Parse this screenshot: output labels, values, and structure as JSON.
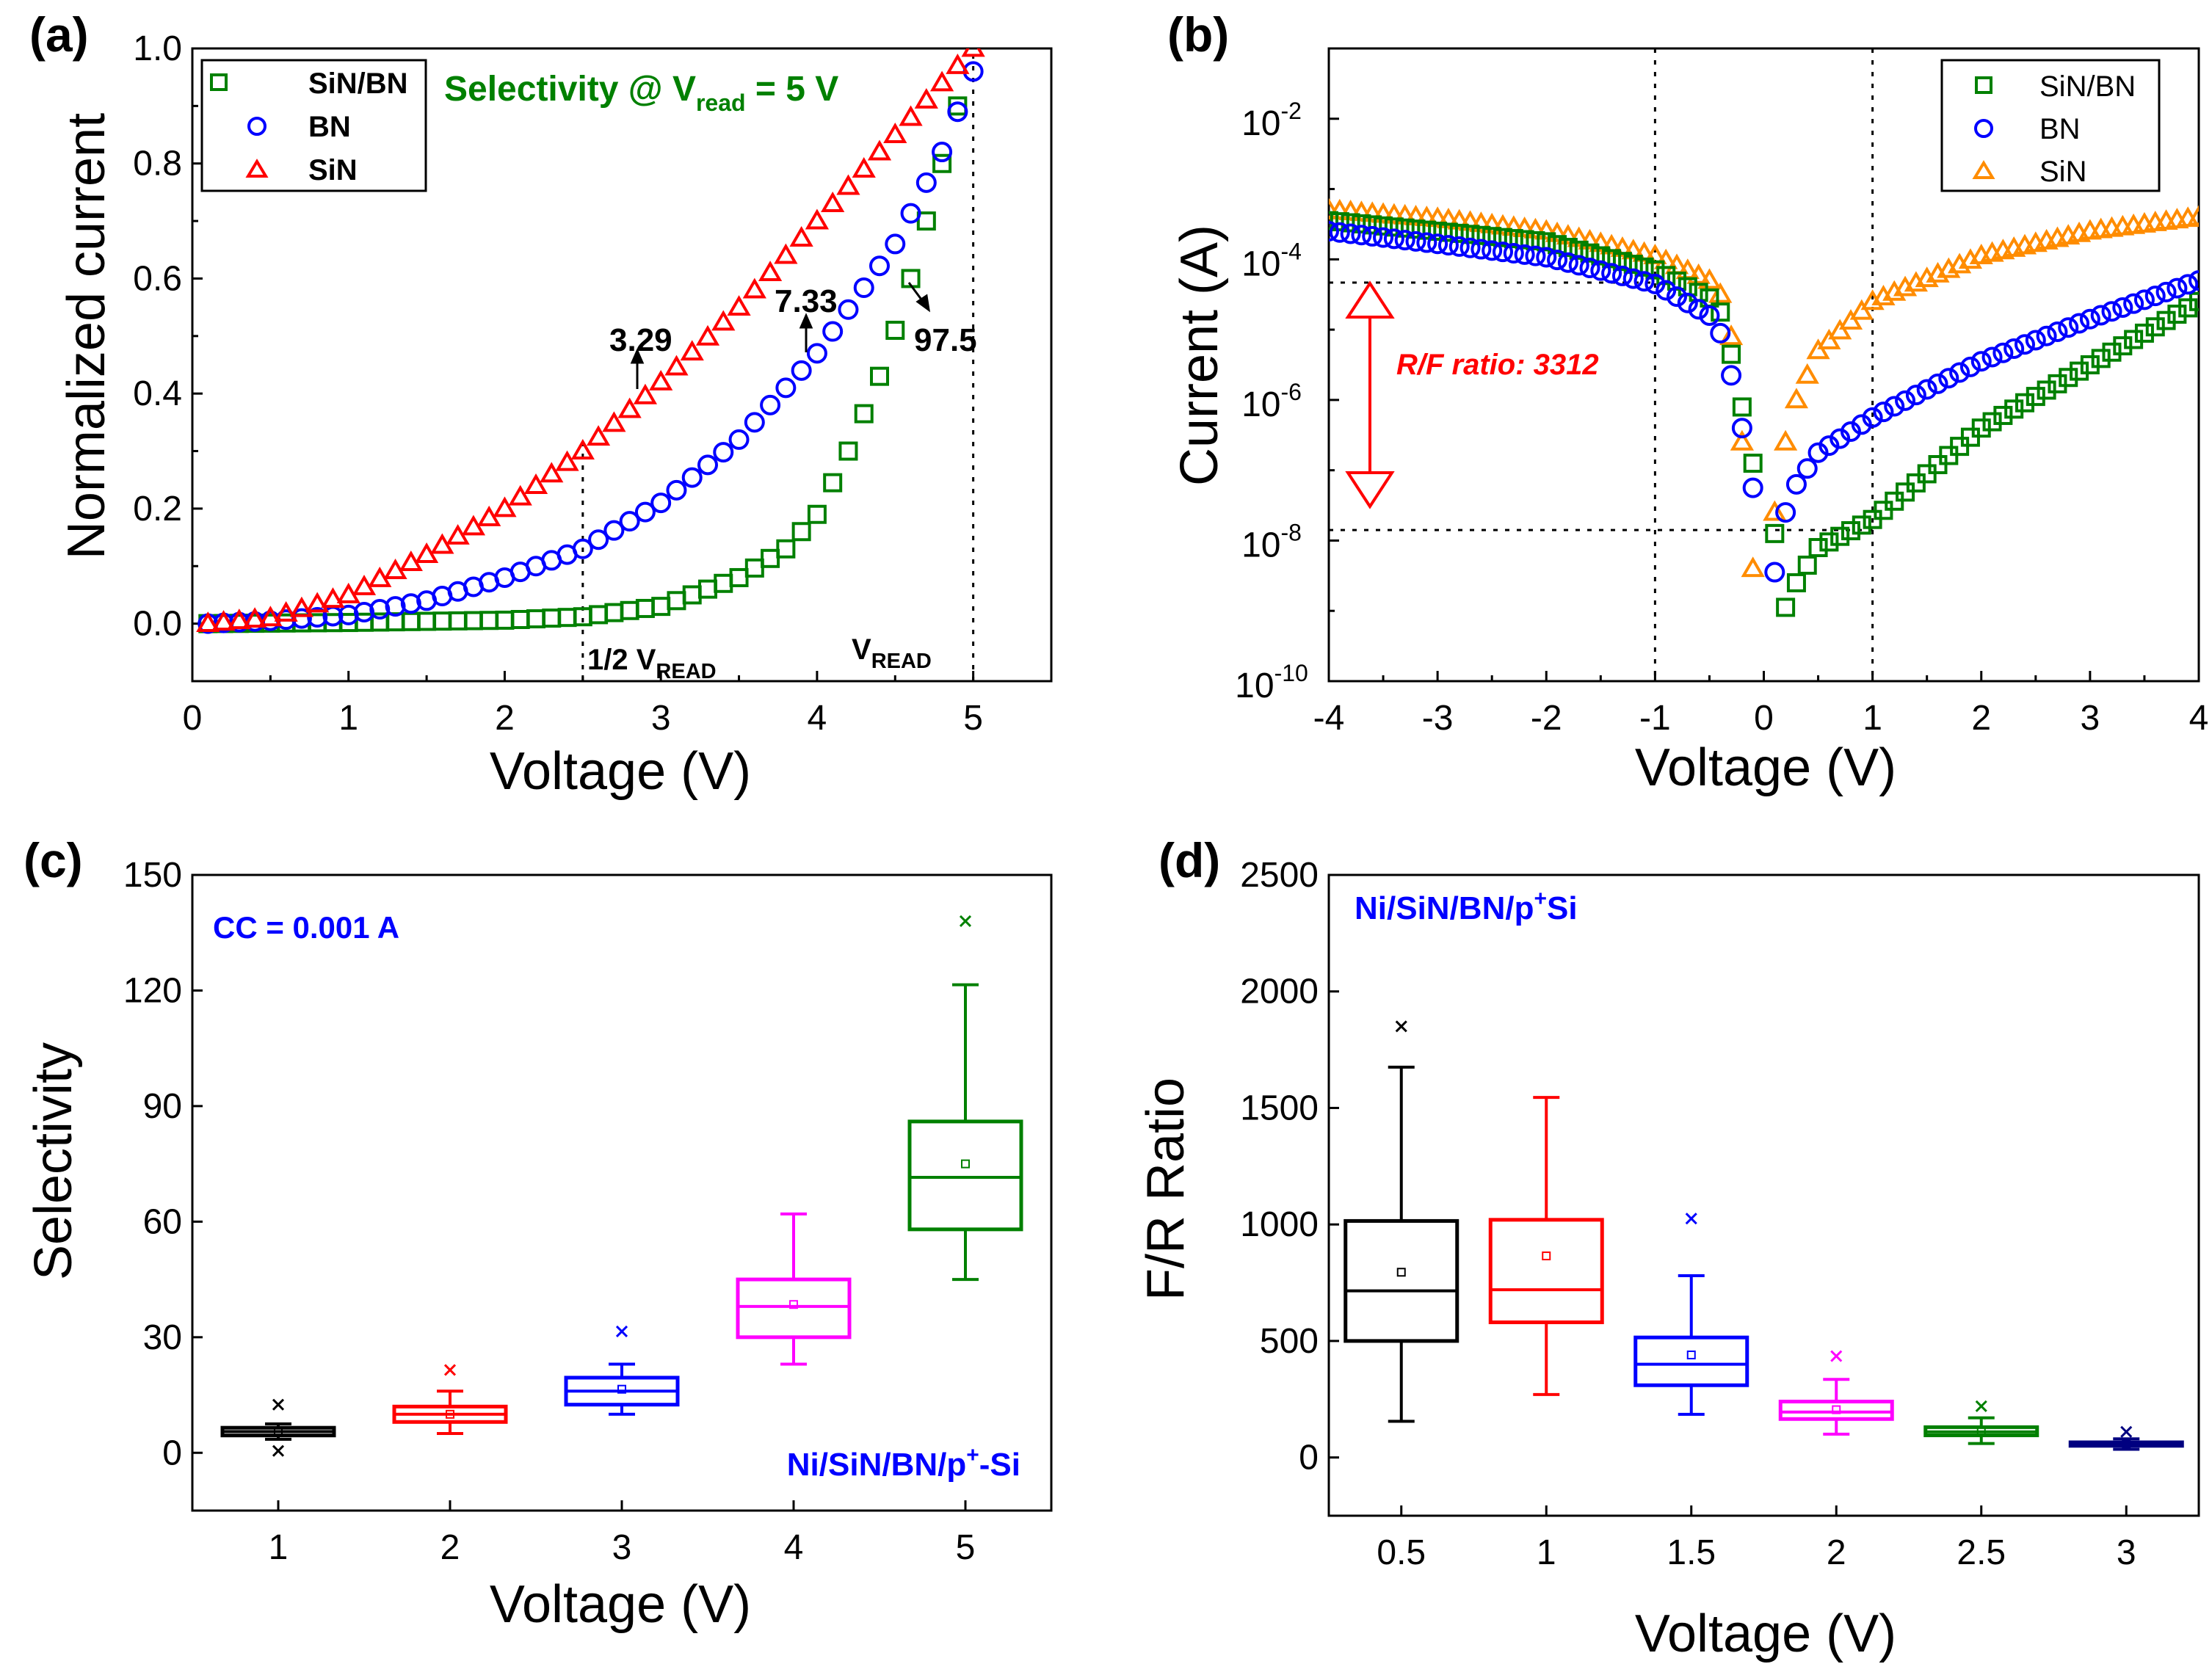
{
  "colors": {
    "green": "#008000",
    "blue": "#0000ff",
    "red": "#ff0000",
    "orange": "#ff8c00",
    "magenta": "#ff00ff",
    "navy": "#000080",
    "black": "#000000"
  },
  "chart_data": [
    {
      "id": "a",
      "panel_label": "(a)",
      "type": "scatter",
      "title": "",
      "xlabel": "Voltage (V)",
      "ylabel": "Normalized current",
      "xlim": [
        0,
        5.5
      ],
      "ylim": [
        -0.1,
        1.0
      ],
      "xticks": [
        0,
        1,
        2,
        3,
        4,
        5
      ],
      "xtick_labels": [
        "0",
        "1",
        "2",
        "3",
        "4",
        "5"
      ],
      "yticks": [
        0.0,
        0.2,
        0.4,
        0.6,
        0.8,
        1.0
      ],
      "ytick_labels": [
        "0.0",
        "0.2",
        "0.4",
        "0.6",
        "0.8",
        "1.0"
      ],
      "legend": {
        "position": "top-left",
        "entries": [
          {
            "label": "SiN/BN",
            "marker": "square",
            "color": "#008000"
          },
          {
            "label": "BN",
            "marker": "circle",
            "color": "#0000ff"
          },
          {
            "label": "SiN",
            "marker": "triangle",
            "color": "#ff0000"
          }
        ]
      },
      "curves": [
        {
          "name": "SiN/BN",
          "marker": "square",
          "color": "#008000",
          "x_start": 0.1,
          "x_end": 4.9,
          "step": 0.1,
          "knots": [
            [
              0.1,
              0.0
            ],
            [
              1.0,
              0.002
            ],
            [
              2.0,
              0.006
            ],
            [
              2.5,
              0.012
            ],
            [
              3.0,
              0.03
            ],
            [
              3.5,
              0.08
            ],
            [
              3.8,
              0.13
            ],
            [
              4.0,
              0.19
            ],
            [
              4.2,
              0.3
            ],
            [
              4.4,
              0.43
            ],
            [
              4.5,
              0.51
            ],
            [
              4.6,
              0.6
            ],
            [
              4.7,
              0.7
            ],
            [
              4.8,
              0.8
            ],
            [
              4.9,
              0.9
            ]
          ]
        },
        {
          "name": "BN",
          "marker": "circle",
          "color": "#0000ff",
          "x_start": 0.1,
          "x_end": 5.0,
          "step": 0.1,
          "knots": [
            [
              0.1,
              0.0
            ],
            [
              0.5,
              0.005
            ],
            [
              1.0,
              0.015
            ],
            [
              1.5,
              0.04
            ],
            [
              2.0,
              0.08
            ],
            [
              2.5,
              0.13
            ],
            [
              3.0,
              0.21
            ],
            [
              3.5,
              0.32
            ],
            [
              4.0,
              0.47
            ],
            [
              4.5,
              0.66
            ],
            [
              4.8,
              0.82
            ],
            [
              4.9,
              0.89
            ],
            [
              5.0,
              0.96
            ]
          ]
        },
        {
          "name": "SiN",
          "marker": "triangle",
          "color": "#ff0000",
          "x_start": 0.1,
          "x_end": 5.0,
          "step": 0.1,
          "knots": [
            [
              0.1,
              0.0
            ],
            [
              0.5,
              0.01
            ],
            [
              1.0,
              0.05
            ],
            [
              1.5,
              0.12
            ],
            [
              2.0,
              0.2
            ],
            [
              2.5,
              0.3
            ],
            [
              3.0,
              0.42
            ],
            [
              3.5,
              0.55
            ],
            [
              4.0,
              0.7
            ],
            [
              4.5,
              0.85
            ],
            [
              5.0,
              1.0
            ]
          ]
        }
      ],
      "vlines": [
        2.5,
        5.0
      ],
      "annotations": {
        "selectivity_title": "Selectivity @ V",
        "selectivity_sub": "read",
        "selectivity_rest": " = 5 V",
        "half_vread": "1/2 V",
        "vread": "V",
        "read_sub": "READ",
        "sel_2_5": "3.29",
        "sel_4": "7.33",
        "sel_5": "97.5"
      }
    },
    {
      "id": "b",
      "panel_label": "(b)",
      "type": "scatter",
      "title": "",
      "xlabel": "Voltage (V)",
      "ylabel": "Current (A)",
      "yscale": "log",
      "xlim": [
        -4,
        4
      ],
      "ylim_log10": [
        -10,
        -1
      ],
      "xticks": [
        -4,
        -3,
        -2,
        -1,
        0,
        1,
        2,
        3,
        4
      ],
      "xtick_labels": [
        "-4",
        "-3",
        "-2",
        "-1",
        "0",
        "1",
        "2",
        "3",
        "4"
      ],
      "ytick_exponents": [
        -10,
        -8,
        -6,
        -4,
        -2
      ],
      "ytick_base": "10",
      "ytick_exponent_labels": [
        "-10",
        "-8",
        "-6",
        "-4",
        "-2"
      ],
      "legend": {
        "position": "top-right",
        "entries": [
          {
            "label": "SiN/BN",
            "marker": "square",
            "color": "#008000"
          },
          {
            "label": "BN",
            "marker": "circle",
            "color": "#0000ff"
          },
          {
            "label": "SiN",
            "marker": "triangle",
            "color": "#ff8c00"
          }
        ]
      },
      "curves": [
        {
          "name": "SiN",
          "marker": "triangle",
          "color": "#ff8c00",
          "x_start": -4.0,
          "x_end": 4.0,
          "step": 0.1,
          "skip_x": [
            0.0
          ],
          "knots": [
            [
              -4.0,
              -3.3
            ],
            [
              -3.0,
              -3.42
            ],
            [
              -2.0,
              -3.6
            ],
            [
              -1.0,
              -3.95
            ],
            [
              -0.5,
              -4.3
            ],
            [
              -0.4,
              -4.5
            ],
            [
              -0.3,
              -5.1
            ],
            [
              -0.2,
              -6.6
            ],
            [
              -0.1,
              -8.4
            ],
            [
              0.1,
              -7.6
            ],
            [
              0.2,
              -6.6
            ],
            [
              0.3,
              -6.0
            ],
            [
              0.5,
              -5.3
            ],
            [
              1.0,
              -4.6
            ],
            [
              2.0,
              -3.95
            ],
            [
              3.0,
              -3.6
            ],
            [
              4.0,
              -3.4
            ]
          ]
        },
        {
          "name": "SiN/BN",
          "marker": "square",
          "color": "#008000",
          "x_start": -4.0,
          "x_end": 4.0,
          "step": 0.1,
          "skip_x": [
            0.0
          ],
          "knots": [
            [
              -4.0,
              -3.45
            ],
            [
              -3.0,
              -3.6
            ],
            [
              -2.0,
              -3.75
            ],
            [
              -1.0,
              -4.15
            ],
            [
              -0.5,
              -4.55
            ],
            [
              -0.4,
              -4.75
            ],
            [
              -0.3,
              -5.35
            ],
            [
              -0.2,
              -6.1
            ],
            [
              -0.1,
              -6.9
            ],
            [
              0.1,
              -7.9
            ],
            [
              0.2,
              -8.95
            ],
            [
              0.3,
              -8.6
            ],
            [
              0.5,
              -8.1
            ],
            [
              1.0,
              -7.7
            ],
            [
              2.0,
              -6.4
            ],
            [
              3.0,
              -5.5
            ],
            [
              4.0,
              -4.6
            ]
          ]
        },
        {
          "name": "BN",
          "marker": "circle",
          "color": "#0000ff",
          "x_start": -4.0,
          "x_end": 4.0,
          "step": 0.1,
          "skip_x": [
            0.0
          ],
          "knots": [
            [
              -4.0,
              -3.6
            ],
            [
              -3.0,
              -3.78
            ],
            [
              -2.0,
              -3.97
            ],
            [
              -1.0,
              -4.35
            ],
            [
              -0.5,
              -4.8
            ],
            [
              -0.4,
              -5.05
            ],
            [
              -0.3,
              -5.65
            ],
            [
              -0.2,
              -6.4
            ],
            [
              -0.1,
              -7.25
            ],
            [
              0.1,
              -8.45
            ],
            [
              0.2,
              -7.6
            ],
            [
              0.3,
              -7.2
            ],
            [
              0.5,
              -6.75
            ],
            [
              1.0,
              -6.25
            ],
            [
              2.0,
              -5.45
            ],
            [
              3.0,
              -4.85
            ],
            [
              4.0,
              -4.3
            ]
          ]
        }
      ],
      "vlines": [
        -1,
        1
      ],
      "hlines_log10": [
        -4.33,
        -7.85
      ],
      "annotations": {
        "ratio_text": "R/F ratio: 3312"
      }
    },
    {
      "id": "c",
      "panel_label": "(c)",
      "type": "box",
      "title": "",
      "xlabel": "Voltage (V)",
      "ylabel": "Selectivity",
      "xlim": [
        0.5,
        5.5
      ],
      "ylim": [
        -15,
        150
      ],
      "xticks": [
        1,
        2,
        3,
        4,
        5
      ],
      "xtick_labels": [
        "1",
        "2",
        "3",
        "4",
        "5"
      ],
      "yticks": [
        0,
        30,
        60,
        90,
        120,
        150
      ],
      "ytick_labels": [
        "0",
        "30",
        "60",
        "90",
        "120",
        "150"
      ],
      "annotations": {
        "cc_label": "CC = 0.001 A",
        "device_prefix": "Ni/SiN/BN/p",
        "device_sup": "+",
        "device_suffix": "-Si"
      },
      "boxes": [
        {
          "x": 1,
          "color": "#000000",
          "q1": 4.5,
          "median": 5.5,
          "q3": 6.5,
          "whisker_low": 3.5,
          "whisker_high": 7.5,
          "mean": 5.5,
          "outliers": [
            12.5,
            0.5
          ]
        },
        {
          "x": 2,
          "color": "#ff0000",
          "q1": 8,
          "median": 10,
          "q3": 12,
          "whisker_low": 5,
          "whisker_high": 16,
          "mean": 10,
          "outliers": [
            21.5
          ]
        },
        {
          "x": 3,
          "color": "#0000ff",
          "q1": 12.5,
          "median": 16,
          "q3": 19.5,
          "whisker_low": 10,
          "whisker_high": 23,
          "mean": 16.5,
          "outliers": [
            31.5
          ]
        },
        {
          "x": 4,
          "color": "#ff00ff",
          "q1": 30,
          "median": 38,
          "q3": 45,
          "whisker_low": 23,
          "whisker_high": 62,
          "mean": 38.5,
          "outliers": []
        },
        {
          "x": 5,
          "color": "#008000",
          "q1": 58,
          "median": 71.5,
          "q3": 86,
          "whisker_low": 45,
          "whisker_high": 121.5,
          "mean": 75,
          "outliers": [
            138
          ]
        }
      ]
    },
    {
      "id": "d",
      "panel_label": "(d)",
      "type": "box",
      "title": "",
      "xlabel": "Voltage (V)",
      "ylabel": "F/R Ratio",
      "xlim": [
        0.25,
        3.25
      ],
      "ylim": [
        -250,
        2500
      ],
      "xticks": [
        0.5,
        1,
        1.5,
        2,
        2.5,
        3
      ],
      "xtick_labels": [
        "0.5",
        "1",
        "1.5",
        "2",
        "2.5",
        "3"
      ],
      "yticks": [
        0,
        500,
        1000,
        1500,
        2000,
        2500
      ],
      "ytick_labels": [
        "0",
        "500",
        "1000",
        "1500",
        "2000",
        "2500"
      ],
      "annotations": {
        "device_prefix": "Ni/SiN/BN/p",
        "device_sup": "+",
        "device_suffix": "Si"
      },
      "boxes": [
        {
          "x": 0.5,
          "color": "#000000",
          "q1": 500,
          "median": 715,
          "q3": 1015,
          "whisker_low": 155,
          "whisker_high": 1675,
          "mean": 795,
          "outliers": [
            1850
          ]
        },
        {
          "x": 1,
          "color": "#ff0000",
          "q1": 580,
          "median": 720,
          "q3": 1020,
          "whisker_low": 270,
          "whisker_high": 1545,
          "mean": 865,
          "outliers": []
        },
        {
          "x": 1.5,
          "color": "#0000ff",
          "q1": 310,
          "median": 400,
          "q3": 515,
          "whisker_low": 185,
          "whisker_high": 780,
          "mean": 440,
          "outliers": [
            1025
          ]
        },
        {
          "x": 2,
          "color": "#ff00ff",
          "q1": 165,
          "median": 195,
          "q3": 240,
          "whisker_low": 100,
          "whisker_high": 335,
          "mean": 205,
          "outliers": [
            435
          ]
        },
        {
          "x": 2.5,
          "color": "#008000",
          "q1": 95,
          "median": 110,
          "q3": 130,
          "whisker_low": 60,
          "whisker_high": 170,
          "mean": 115,
          "outliers": [
            220
          ]
        },
        {
          "x": 3,
          "color": "#000080",
          "q1": 50,
          "median": 58,
          "q3": 65,
          "whisker_low": 35,
          "whisker_high": 80,
          "mean": 60,
          "outliers": [
            110
          ]
        }
      ]
    }
  ]
}
